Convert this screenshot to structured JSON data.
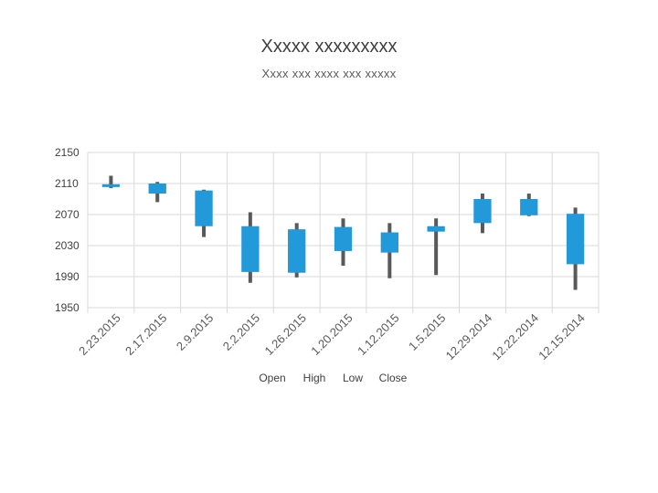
{
  "chart_data": {
    "type": "candlestick",
    "title": "Xxxxx xxxxxxxxx",
    "subtitle": "Xxxx xxx xxxx xxx xxxxx",
    "categories": [
      "2.23.2015",
      "2.17.2015",
      "2.9.2015",
      "2.2.2015",
      "1.26.2015",
      "1.20.2015",
      "1.12.2015",
      "1.5.2015",
      "12.29.2014",
      "12.22.2014",
      "12.15.2014"
    ],
    "series": [
      {
        "name": "Open",
        "values": [
          2109,
          2110,
          2101,
          2055,
          2051,
          2054,
          2047,
          2055,
          2090,
          2090,
          2071
        ]
      },
      {
        "name": "High",
        "values": [
          2120,
          2112,
          2102,
          2073,
          2059,
          2065,
          2059,
          2065,
          2097,
          2097,
          2079
        ]
      },
      {
        "name": "Low",
        "values": [
          2104,
          2086,
          2041,
          1982,
          1989,
          2004,
          1988,
          1992,
          2046,
          2068,
          1973
        ]
      },
      {
        "name": "Close",
        "values": [
          2108,
          2097,
          2055,
          1996,
          1995,
          2023,
          2021,
          2048,
          2059,
          2069,
          2006
        ]
      }
    ],
    "ylim": [
      1950,
      2150
    ],
    "yticks": [
      1950,
      1990,
      2030,
      2070,
      2110,
      2150
    ],
    "grid": true,
    "legend_position": "bottom",
    "colors": {
      "up": "#1f4e6f",
      "down": "#2299d8",
      "wick": "#595959",
      "grid": "#d9d9d9"
    }
  }
}
